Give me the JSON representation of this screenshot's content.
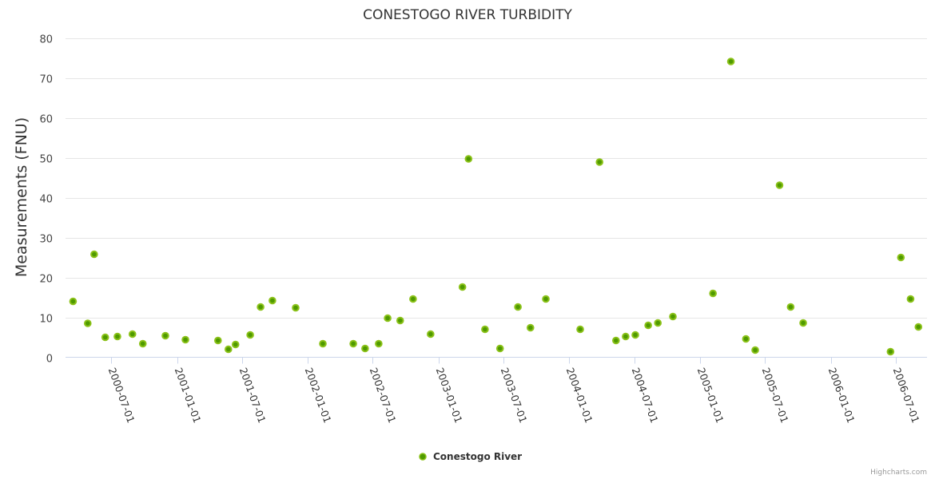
{
  "chart_data": {
    "type": "scatter",
    "title": "CONESTOGO RIVER TURBIDITY",
    "xlabel": "",
    "ylabel": "Measurements (FNU)",
    "xlim": [
      "2000-02-24",
      "2006-09-27"
    ],
    "ylim": [
      0,
      80
    ],
    "y_ticks": [
      0,
      10,
      20,
      30,
      40,
      50,
      60,
      70,
      80
    ],
    "x_ticks": [
      "2000-07-01",
      "2001-01-01",
      "2001-07-01",
      "2002-01-01",
      "2002-07-01",
      "2003-01-01",
      "2003-07-01",
      "2004-01-01",
      "2004-07-01",
      "2005-01-01",
      "2005-07-01",
      "2006-01-01",
      "2006-07-01"
    ],
    "grid": true,
    "legend_position": "bottom-center",
    "colors": {
      "marker_fill": "#4f9a00",
      "marker_stroke": "#8cc21a",
      "grid": "#e6e6e6",
      "axis": "#ccd6eb"
    },
    "series": [
      {
        "name": "Conestogo River",
        "points": [
          [
            "2000-03-16",
            14.0
          ],
          [
            "2000-04-26",
            8.5
          ],
          [
            "2000-05-14",
            25.8
          ],
          [
            "2000-06-14",
            5.0
          ],
          [
            "2000-07-18",
            5.2
          ],
          [
            "2000-08-29",
            5.8
          ],
          [
            "2000-09-27",
            3.4
          ],
          [
            "2000-11-29",
            5.4
          ],
          [
            "2001-01-24",
            4.4
          ],
          [
            "2001-04-25",
            4.2
          ],
          [
            "2001-05-24",
            2.0
          ],
          [
            "2001-06-13",
            3.2
          ],
          [
            "2001-07-24",
            5.6
          ],
          [
            "2001-08-22",
            12.6
          ],
          [
            "2001-09-24",
            14.2
          ],
          [
            "2001-11-28",
            12.4
          ],
          [
            "2002-02-12",
            3.4
          ],
          [
            "2002-05-08",
            3.4
          ],
          [
            "2002-06-10",
            2.2
          ],
          [
            "2002-07-18",
            3.4
          ],
          [
            "2002-08-12",
            9.8
          ],
          [
            "2002-09-16",
            9.2
          ],
          [
            "2002-10-22",
            14.6
          ],
          [
            "2002-12-10",
            5.8
          ],
          [
            "2003-03-09",
            17.6
          ],
          [
            "2003-03-26",
            49.7
          ],
          [
            "2003-05-11",
            7.0
          ],
          [
            "2003-06-22",
            2.2
          ],
          [
            "2003-08-11",
            12.6
          ],
          [
            "2003-09-15",
            7.4
          ],
          [
            "2003-10-28",
            14.6
          ],
          [
            "2004-02-01",
            7.0
          ],
          [
            "2004-03-26",
            48.9
          ],
          [
            "2004-05-11",
            4.2
          ],
          [
            "2004-06-07",
            5.2
          ],
          [
            "2004-07-04",
            5.6
          ],
          [
            "2004-08-09",
            8.0
          ],
          [
            "2004-09-05",
            8.6
          ],
          [
            "2004-10-17",
            10.2
          ],
          [
            "2005-02-06",
            16.0
          ],
          [
            "2005-03-28",
            74.1
          ],
          [
            "2005-05-09",
            4.6
          ],
          [
            "2005-06-04",
            1.8
          ],
          [
            "2005-08-11",
            43.1
          ],
          [
            "2005-09-11",
            12.6
          ],
          [
            "2005-10-16",
            8.6
          ],
          [
            "2006-06-17",
            1.4
          ],
          [
            "2006-07-16",
            25.0
          ],
          [
            "2006-08-12",
            14.6
          ],
          [
            "2006-09-03",
            7.6
          ]
        ]
      }
    ],
    "credits": "Highcharts.com"
  }
}
